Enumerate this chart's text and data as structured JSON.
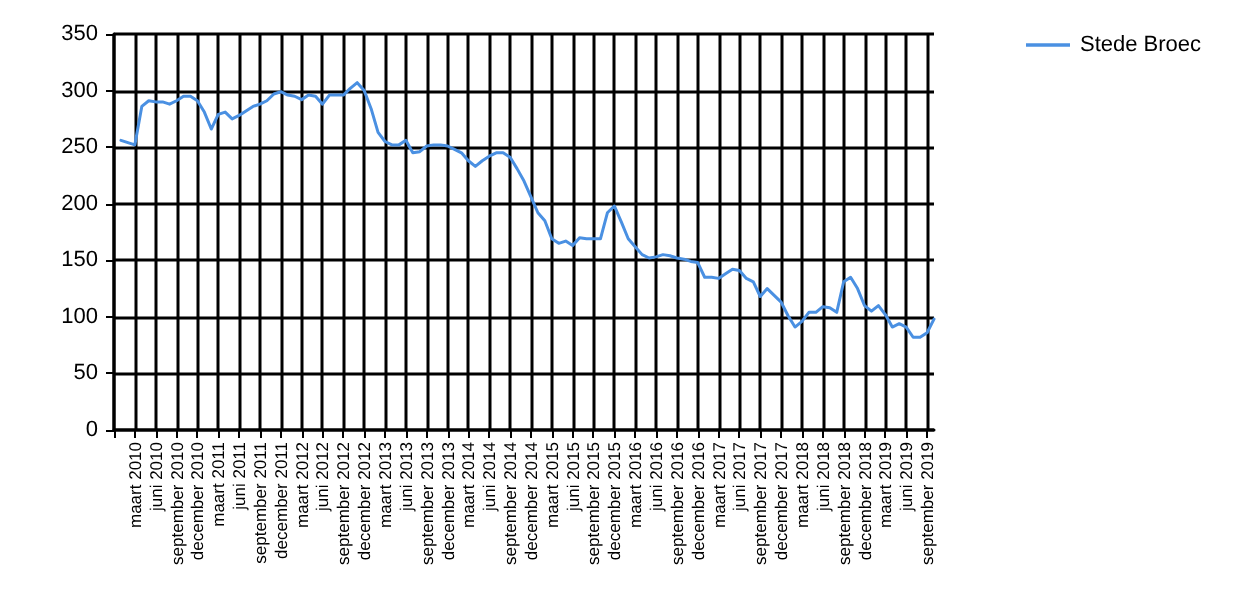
{
  "chart_data": {
    "type": "line",
    "categories": [
      null,
      null,
      null,
      "maart 2010",
      null,
      null,
      "juni 2010",
      null,
      null,
      "september 2010",
      null,
      null,
      "december 2010",
      null,
      null,
      "maart 2011",
      null,
      null,
      "juni 2011",
      null,
      null,
      "september 2011",
      null,
      null,
      "december 2011",
      null,
      null,
      "maart 2012",
      null,
      null,
      "juni 2012",
      null,
      null,
      "september 2012",
      null,
      null,
      "december 2012",
      null,
      null,
      "maart 2013",
      null,
      null,
      "juni 2013",
      null,
      null,
      "september 2013",
      null,
      null,
      "december 2013",
      null,
      null,
      "maart 2014",
      null,
      null,
      "juni 2014",
      null,
      null,
      "september 2014",
      null,
      null,
      "december 2014",
      null,
      null,
      "maart 2015",
      null,
      null,
      "juni 2015",
      null,
      null,
      "september 2015",
      null,
      null,
      "december 2015",
      null,
      null,
      "maart 2016",
      null,
      null,
      "juni 2016",
      null,
      null,
      "september 2016",
      null,
      null,
      "december 2016",
      null,
      null,
      "maart 2017",
      null,
      null,
      "juni 2017",
      null,
      null,
      "september 2017",
      null,
      null,
      "december 2017",
      null,
      null,
      "maart 2018",
      null,
      null,
      "juni 2018",
      null,
      null,
      "september 2018",
      null,
      null,
      "december 2018",
      null,
      null,
      "maart 2019",
      null,
      null,
      "juni 2019",
      null,
      null,
      "september 2019",
      null
    ],
    "series": [
      {
        "name": "Stede Broec",
        "color": "#4a90e2",
        "values": [
          null,
          256,
          254,
          252,
          286,
          291,
          290,
          290,
          288,
          291,
          295,
          295,
          291,
          281,
          266,
          279,
          281,
          275,
          278,
          282,
          286,
          288,
          291,
          297,
          299,
          296,
          295,
          292,
          296,
          295,
          288,
          296,
          296,
          296,
          302,
          307,
          300,
          284,
          263,
          255,
          252,
          252,
          256,
          245,
          246,
          251,
          252,
          252,
          251,
          248,
          245,
          238,
          233,
          238,
          242,
          245,
          245,
          241,
          231,
          220,
          206,
          192,
          185,
          169,
          165,
          167,
          163,
          170,
          169,
          169,
          169,
          192,
          198,
          184,
          169,
          162,
          155,
          152,
          153,
          155,
          154,
          152,
          151,
          149,
          148,
          135,
          135,
          134,
          138,
          142,
          141,
          134,
          131,
          118,
          125,
          119,
          113,
          101,
          91,
          96,
          104,
          104,
          109,
          108,
          104,
          131,
          135,
          125,
          110,
          105,
          110,
          102,
          91,
          94,
          91,
          82,
          82,
          86,
          98
        ]
      }
    ],
    "ylim": [
      0,
      350
    ],
    "yticks": [
      0,
      50,
      100,
      150,
      200,
      250,
      300,
      350
    ],
    "grid": true,
    "legend": "top right",
    "marker": "none",
    "line_style": "solid"
  }
}
